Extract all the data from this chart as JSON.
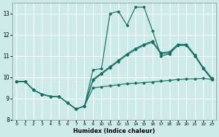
{
  "xlabel": "Humidex (Indice chaleur)",
  "bg_color": "#cceae8",
  "line_color": "#1a6e65",
  "grid_color": "#ffffff",
  "xlim": [
    -0.5,
    23.5
  ],
  "ylim": [
    8,
    13.5
  ],
  "yticks": [
    8,
    9,
    10,
    11,
    12,
    13
  ],
  "xticks": [
    0,
    1,
    2,
    3,
    4,
    5,
    6,
    7,
    8,
    9,
    10,
    11,
    12,
    13,
    14,
    15,
    16,
    17,
    18,
    19,
    20,
    21,
    22,
    23
  ],
  "line1_x": [
    0,
    1,
    2,
    3,
    4,
    5,
    6,
    7,
    8,
    9,
    10,
    11,
    12,
    13,
    14,
    15,
    16,
    17,
    18,
    19,
    20,
    21,
    22,
    23
  ],
  "line1_y": [
    9.8,
    9.8,
    9.4,
    9.2,
    9.1,
    9.1,
    8.8,
    8.5,
    8.65,
    9.5,
    9.55,
    9.6,
    9.65,
    9.7,
    9.72,
    9.75,
    9.78,
    9.82,
    9.85,
    9.9,
    9.92,
    9.93,
    9.95,
    9.9
  ],
  "line2_x": [
    0,
    1,
    2,
    3,
    4,
    5,
    6,
    7,
    8,
    9,
    10,
    11,
    12,
    13,
    14,
    15,
    16,
    17,
    18,
    19,
    20,
    21,
    22,
    23
  ],
  "line2_y": [
    9.8,
    9.8,
    9.4,
    9.2,
    9.1,
    9.1,
    8.8,
    8.5,
    8.65,
    10.35,
    10.4,
    13.0,
    13.1,
    12.45,
    13.3,
    13.3,
    12.2,
    11.0,
    11.1,
    11.5,
    11.5,
    11.0,
    10.4,
    9.9
  ],
  "line3_x": [
    0,
    1,
    2,
    3,
    4,
    5,
    6,
    7,
    8,
    9,
    10,
    11,
    12,
    13,
    14,
    15,
    16,
    17,
    18,
    19,
    20,
    21,
    22,
    23
  ],
  "line3_y": [
    9.8,
    9.8,
    9.4,
    9.2,
    9.1,
    9.1,
    8.8,
    8.5,
    8.65,
    9.9,
    10.2,
    10.5,
    10.8,
    11.1,
    11.35,
    11.55,
    11.7,
    11.15,
    11.2,
    11.55,
    11.55,
    11.05,
    10.45,
    9.95
  ],
  "line4_x": [
    0,
    1,
    2,
    3,
    4,
    5,
    6,
    7,
    8,
    9,
    10,
    11,
    12,
    13,
    14,
    15,
    16,
    17,
    18,
    19,
    20,
    21,
    22,
    23
  ],
  "line4_y": [
    9.8,
    9.8,
    9.4,
    9.2,
    9.1,
    9.1,
    8.8,
    8.5,
    8.65,
    9.85,
    10.15,
    10.45,
    10.75,
    11.05,
    11.3,
    11.5,
    11.65,
    11.1,
    11.15,
    11.5,
    11.5,
    11.0,
    10.4,
    9.9
  ]
}
